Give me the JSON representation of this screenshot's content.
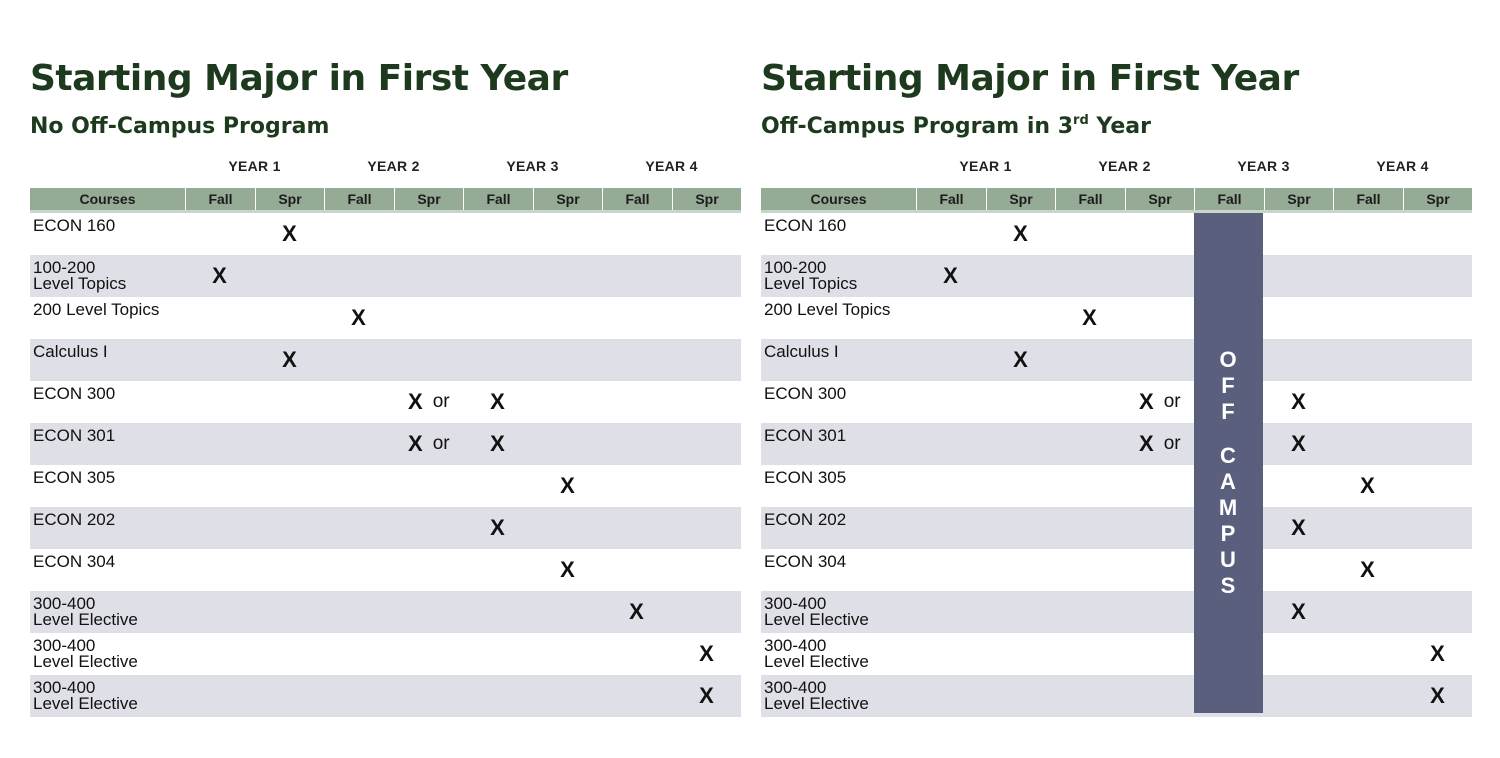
{
  "panels": [
    {
      "title": "Starting Major in First Year",
      "subtitle": "No Off-Campus Program",
      "years": [
        "YEAR 1",
        "YEAR 2",
        "YEAR 3",
        "YEAR 4"
      ],
      "columns": [
        "Courses",
        "Fall",
        "Spr",
        "Fall",
        "Spr",
        "Fall",
        "Spr",
        "Fall",
        "Spr"
      ],
      "rows": [
        {
          "course": "ECON 160",
          "marks": [
            "",
            "X",
            "",
            "",
            "",
            "",
            "",
            ""
          ]
        },
        {
          "course": "100-200\nLevel Topics",
          "marks": [
            "X",
            "",
            "",
            "",
            "",
            "",
            "",
            ""
          ]
        },
        {
          "course": "200 Level Topics",
          "marks": [
            "",
            "",
            "X",
            "",
            "",
            "",
            "",
            ""
          ]
        },
        {
          "course": "Calculus I",
          "marks": [
            "",
            "X",
            "",
            "",
            "",
            "",
            "",
            ""
          ]
        },
        {
          "course": "ECON 300",
          "marks": [
            "",
            "",
            "",
            "X or",
            "X",
            "",
            "",
            ""
          ]
        },
        {
          "course": "ECON 301",
          "marks": [
            "",
            "",
            "",
            "X or",
            "X",
            "",
            "",
            ""
          ]
        },
        {
          "course": "ECON 305",
          "marks": [
            "",
            "",
            "",
            "",
            "",
            "X",
            "",
            ""
          ]
        },
        {
          "course": "ECON 202",
          "marks": [
            "",
            "",
            "",
            "",
            "X",
            "",
            "",
            ""
          ]
        },
        {
          "course": "ECON 304",
          "marks": [
            "",
            "",
            "",
            "",
            "",
            "X",
            "",
            ""
          ]
        },
        {
          "course": "300-400\nLevel Elective",
          "marks": [
            "",
            "",
            "",
            "",
            "",
            "",
            "X",
            ""
          ]
        },
        {
          "course": "300-400\nLevel Elective",
          "marks": [
            "",
            "",
            "",
            "",
            "",
            "",
            "",
            "X"
          ]
        },
        {
          "course": "300-400\nLevel Elective",
          "marks": [
            "",
            "",
            "",
            "",
            "",
            "",
            "",
            "X"
          ]
        }
      ]
    },
    {
      "title": "Starting Major in First Year",
      "subtitle_main": "Off-Campus Program in 3",
      "subtitle_sup": "rd",
      "subtitle_end": " Year",
      "years": [
        "YEAR 1",
        "YEAR 2",
        "YEAR 3",
        "YEAR 4"
      ],
      "columns": [
        "Courses",
        "Fall",
        "Spr",
        "Fall",
        "Spr",
        "Fall",
        "Spr",
        "Fall",
        "Spr"
      ],
      "off_campus_label": "OFF CAMPUS",
      "rows": [
        {
          "course": "ECON 160",
          "marks": [
            "",
            "X",
            "",
            "",
            "",
            "",
            "",
            ""
          ]
        },
        {
          "course": "100-200\nLevel Topics",
          "marks": [
            "X",
            "",
            "",
            "",
            "",
            "",
            "",
            ""
          ]
        },
        {
          "course": "200 Level Topics",
          "marks": [
            "",
            "",
            "X",
            "",
            "",
            "",
            "",
            ""
          ]
        },
        {
          "course": "Calculus I",
          "marks": [
            "",
            "X",
            "",
            "",
            "",
            "",
            "",
            ""
          ]
        },
        {
          "course": "ECON 300",
          "marks": [
            "",
            "",
            "",
            "X or",
            "",
            "X",
            "",
            ""
          ]
        },
        {
          "course": "ECON 301",
          "marks": [
            "",
            "",
            "",
            "X or",
            "",
            "X",
            "",
            ""
          ]
        },
        {
          "course": "ECON 305",
          "marks": [
            "",
            "",
            "",
            "",
            "",
            "",
            "X",
            ""
          ]
        },
        {
          "course": "ECON 202",
          "marks": [
            "",
            "",
            "",
            "",
            "",
            "X",
            "",
            ""
          ]
        },
        {
          "course": "ECON 304",
          "marks": [
            "",
            "",
            "",
            "",
            "",
            "",
            "X",
            ""
          ]
        },
        {
          "course": "300-400\nLevel Elective",
          "marks": [
            "",
            "",
            "",
            "",
            "",
            "X",
            "",
            ""
          ]
        },
        {
          "course": "300-400\nLevel Elective",
          "marks": [
            "",
            "",
            "",
            "",
            "",
            "",
            "",
            "X"
          ]
        },
        {
          "course": "300-400\nLevel Elective",
          "marks": [
            "",
            "",
            "",
            "",
            "",
            "",
            "",
            "X"
          ]
        }
      ]
    }
  ]
}
